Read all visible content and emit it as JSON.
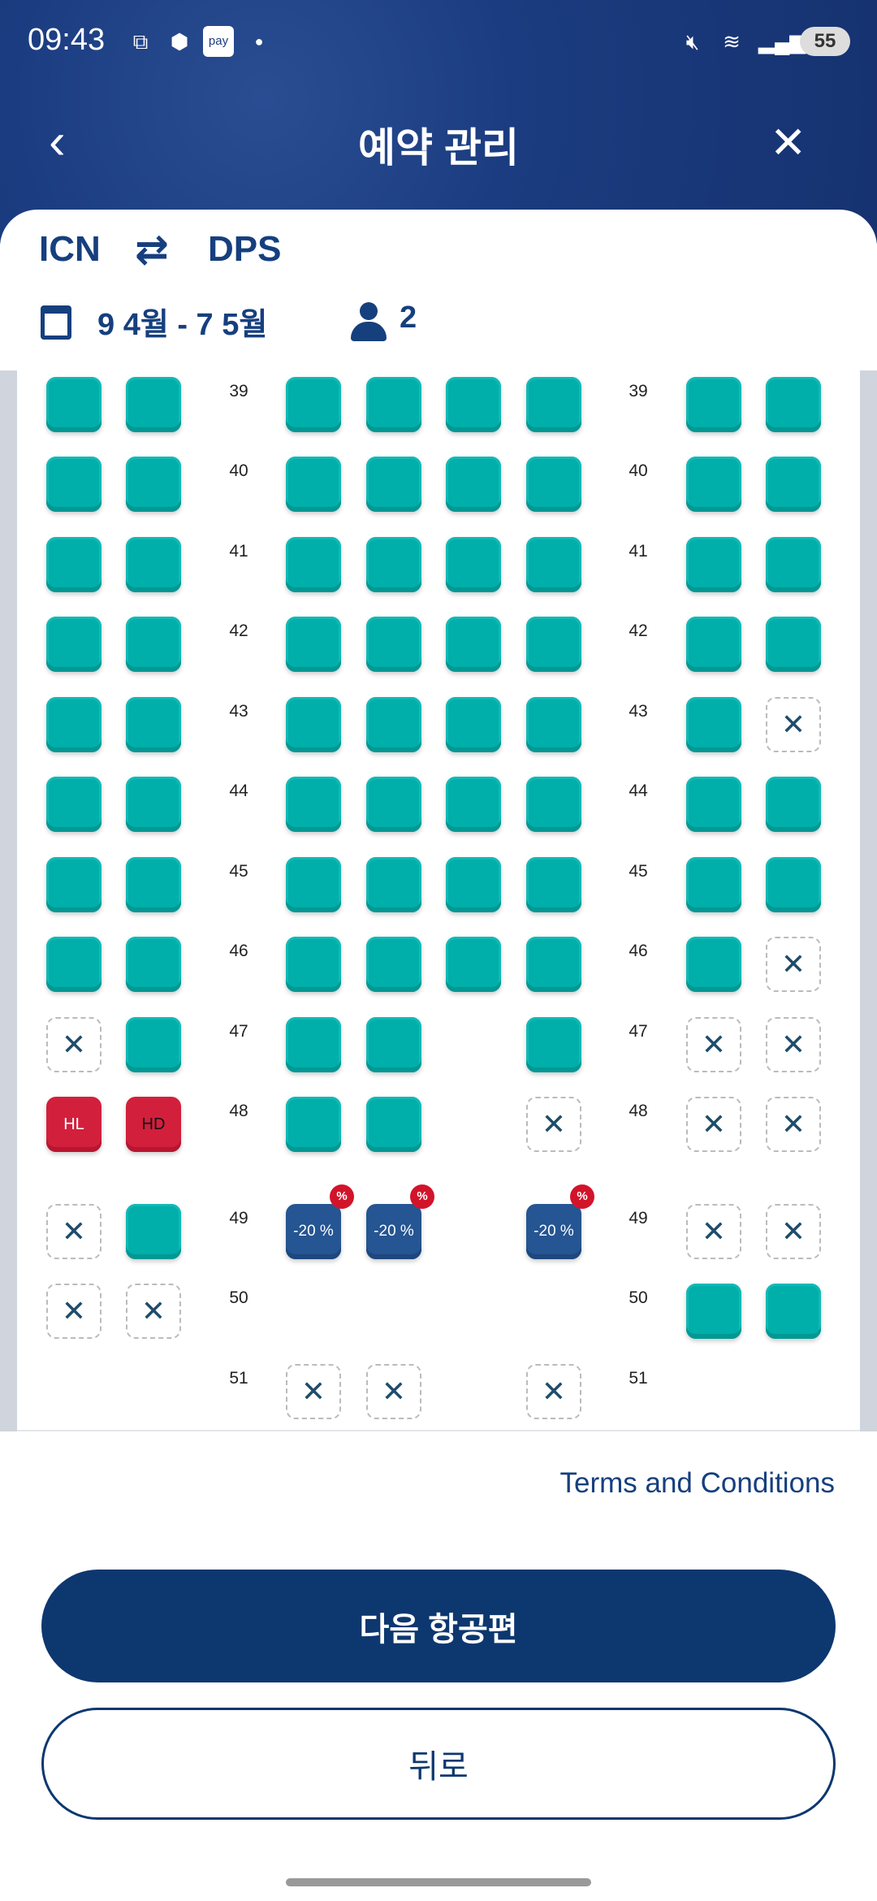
{
  "status_bar": {
    "time": "09:43",
    "pay_label": "pay",
    "battery": "55",
    "icons": [
      "screenshot-icon",
      "cube-icon",
      "pay-icon",
      "dot-icon",
      "mute-icon",
      "wifi-icon",
      "signal-icon"
    ]
  },
  "header": {
    "title": "예약 관리",
    "back_icon": "chevron-left-icon",
    "close_icon": "close-icon"
  },
  "trip": {
    "origin": "ICN",
    "destination": "DPS",
    "swap_icon": "⇄",
    "dates": "9 4월 - 7 5월",
    "passengers": "2"
  },
  "seat_legend": {
    "available": "#00aeaa",
    "occupied": "x",
    "discount": "#255592",
    "discount_label": "-20 %",
    "discount_badge": "%",
    "hl_label": "HL",
    "hd_label": "HD",
    "hl_color": "#d21f3c"
  },
  "seat_map": {
    "rows": [
      {
        "row": "39",
        "seats": [
          "a",
          "a",
          "a",
          "a",
          "a",
          "a",
          "a",
          "a"
        ]
      },
      {
        "row": "40",
        "seats": [
          "a",
          "a",
          "a",
          "a",
          "a",
          "a",
          "a",
          "a"
        ]
      },
      {
        "row": "41",
        "seats": [
          "a",
          "a",
          "a",
          "a",
          "a",
          "a",
          "a",
          "a"
        ]
      },
      {
        "row": "42",
        "seats": [
          "a",
          "a",
          "a",
          "a",
          "a",
          "a",
          "a",
          "a"
        ]
      },
      {
        "row": "43",
        "seats": [
          "a",
          "a",
          "a",
          "a",
          "a",
          "a",
          "a",
          "x"
        ]
      },
      {
        "row": "44",
        "seats": [
          "a",
          "a",
          "a",
          "a",
          "a",
          "a",
          "a",
          "a"
        ]
      },
      {
        "row": "45",
        "seats": [
          "a",
          "a",
          "a",
          "a",
          "a",
          "a",
          "a",
          "a"
        ]
      },
      {
        "row": "46",
        "seats": [
          "a",
          "a",
          "a",
          "a",
          "a",
          "a",
          "a",
          "x"
        ]
      },
      {
        "row": "47",
        "seats": [
          "x",
          "a",
          "a",
          "a",
          "n",
          "a",
          "x",
          "x"
        ]
      },
      {
        "row": "48",
        "seats": [
          "hl",
          "hd",
          "a",
          "a",
          "n",
          "x",
          "x",
          "x"
        ]
      },
      {
        "row": "49",
        "seats": [
          "x",
          "a",
          "d",
          "d",
          "n",
          "d",
          "x",
          "x"
        ]
      },
      {
        "row": "50",
        "seats": [
          "x",
          "x",
          "n",
          "n",
          "n",
          "n",
          "a",
          "a"
        ]
      },
      {
        "row": "51",
        "seats": [
          "n",
          "n",
          "x",
          "x",
          "n",
          "x",
          "n",
          "n"
        ]
      }
    ]
  },
  "footer": {
    "terms": "Terms and Conditions",
    "next_label": "다음 항공편",
    "back_label": "뒤로"
  }
}
